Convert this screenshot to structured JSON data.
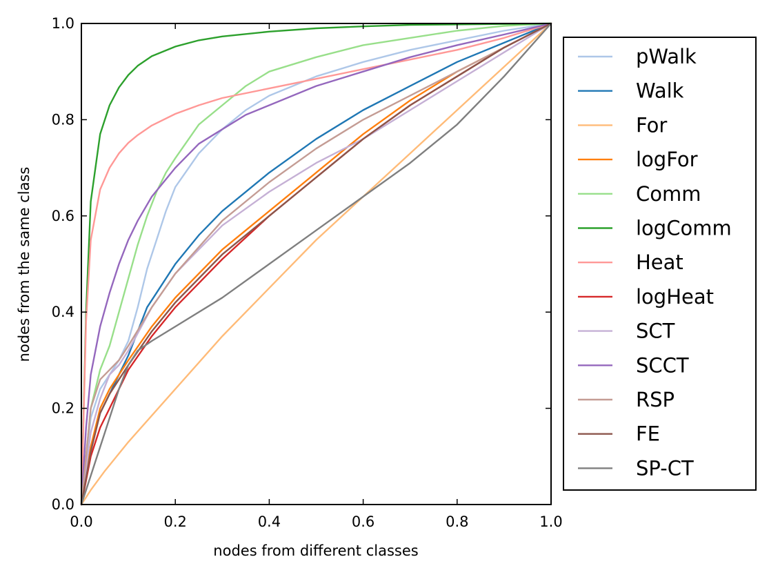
{
  "chart_data": {
    "type": "line",
    "title": "",
    "xlabel": "nodes from different classes",
    "ylabel": "nodes from the same class",
    "xlim": [
      0.0,
      1.0
    ],
    "ylim": [
      0.0,
      1.0
    ],
    "x_ticks": [
      "0.0",
      "0.2",
      "0.4",
      "0.6",
      "0.8",
      "1.0"
    ],
    "y_ticks": [
      "0.0",
      "0.2",
      "0.4",
      "0.6",
      "0.8",
      "1.0"
    ],
    "grid": false,
    "legend_position": "right, outside plot",
    "series": [
      {
        "name": "pWalk",
        "color": "#aec7e8",
        "x": [
          0,
          0.02,
          0.04,
          0.06,
          0.08,
          0.1,
          0.12,
          0.14,
          0.16,
          0.18,
          0.2,
          0.25,
          0.3,
          0.35,
          0.4,
          0.5,
          0.6,
          0.7,
          0.8,
          0.9,
          1.0
        ],
        "y": [
          0,
          0.18,
          0.24,
          0.27,
          0.3,
          0.34,
          0.41,
          0.49,
          0.55,
          0.61,
          0.66,
          0.73,
          0.78,
          0.82,
          0.85,
          0.89,
          0.92,
          0.945,
          0.965,
          0.985,
          1.0
        ]
      },
      {
        "name": "Walk",
        "color": "#1f77b4",
        "x": [
          0,
          0.02,
          0.04,
          0.06,
          0.08,
          0.1,
          0.12,
          0.14,
          0.16,
          0.2,
          0.25,
          0.3,
          0.35,
          0.4,
          0.5,
          0.6,
          0.7,
          0.8,
          0.9,
          1.0
        ],
        "y": [
          0,
          0.12,
          0.19,
          0.23,
          0.27,
          0.31,
          0.36,
          0.41,
          0.44,
          0.5,
          0.56,
          0.61,
          0.65,
          0.69,
          0.76,
          0.82,
          0.87,
          0.92,
          0.96,
          1.0
        ]
      },
      {
        "name": "For",
        "color": "#ffbb78",
        "x": [
          0,
          0.02,
          0.05,
          0.1,
          0.2,
          0.3,
          0.4,
          0.5,
          0.6,
          0.7,
          0.8,
          0.9,
          1.0
        ],
        "y": [
          0,
          0.03,
          0.07,
          0.13,
          0.24,
          0.35,
          0.45,
          0.55,
          0.64,
          0.73,
          0.82,
          0.91,
          1.0
        ]
      },
      {
        "name": "logFor",
        "color": "#ff7f0e",
        "x": [
          0,
          0.02,
          0.04,
          0.06,
          0.08,
          0.1,
          0.15,
          0.2,
          0.3,
          0.4,
          0.5,
          0.6,
          0.7,
          0.8,
          0.9,
          1.0
        ],
        "y": [
          0,
          0.12,
          0.2,
          0.24,
          0.27,
          0.3,
          0.37,
          0.43,
          0.53,
          0.61,
          0.69,
          0.77,
          0.84,
          0.9,
          0.95,
          1.0
        ]
      },
      {
        "name": "Comm",
        "color": "#98df8a",
        "x": [
          0,
          0.02,
          0.04,
          0.06,
          0.08,
          0.1,
          0.12,
          0.14,
          0.16,
          0.18,
          0.2,
          0.25,
          0.3,
          0.35,
          0.4,
          0.5,
          0.6,
          0.7,
          0.8,
          0.9,
          1.0
        ],
        "y": [
          0,
          0.2,
          0.28,
          0.33,
          0.4,
          0.47,
          0.54,
          0.6,
          0.65,
          0.69,
          0.72,
          0.79,
          0.83,
          0.87,
          0.9,
          0.93,
          0.955,
          0.97,
          0.985,
          0.995,
          1.0
        ]
      },
      {
        "name": "logComm",
        "color": "#2ca02c",
        "x": [
          0,
          0.01,
          0.02,
          0.04,
          0.06,
          0.08,
          0.1,
          0.12,
          0.15,
          0.2,
          0.25,
          0.3,
          0.4,
          0.5,
          0.6,
          0.7,
          0.8,
          0.9,
          1.0
        ],
        "y": [
          0,
          0.4,
          0.63,
          0.77,
          0.83,
          0.867,
          0.893,
          0.912,
          0.932,
          0.952,
          0.965,
          0.973,
          0.983,
          0.99,
          0.994,
          0.997,
          0.998,
          0.999,
          1.0
        ]
      },
      {
        "name": "Heat",
        "color": "#ff9896",
        "x": [
          0,
          0.01,
          0.02,
          0.04,
          0.06,
          0.08,
          0.1,
          0.12,
          0.15,
          0.2,
          0.25,
          0.3,
          0.4,
          0.5,
          0.6,
          0.7,
          0.8,
          0.9,
          1.0
        ],
        "y": [
          0,
          0.38,
          0.55,
          0.655,
          0.7,
          0.73,
          0.752,
          0.768,
          0.788,
          0.812,
          0.83,
          0.845,
          0.865,
          0.885,
          0.905,
          0.925,
          0.945,
          0.97,
          1.0
        ]
      },
      {
        "name": "logHeat",
        "color": "#d62728",
        "x": [
          0,
          0.02,
          0.04,
          0.06,
          0.1,
          0.15,
          0.2,
          0.3,
          0.4,
          0.5,
          0.6,
          0.7,
          0.8,
          0.9,
          1.0
        ],
        "y": [
          0,
          0.1,
          0.16,
          0.2,
          0.28,
          0.35,
          0.41,
          0.51,
          0.6,
          0.68,
          0.76,
          0.83,
          0.89,
          0.95,
          1.0
        ]
      },
      {
        "name": "SCT",
        "color": "#c5b0d5",
        "x": [
          0,
          0.02,
          0.04,
          0.06,
          0.08,
          0.1,
          0.15,
          0.2,
          0.3,
          0.4,
          0.5,
          0.6,
          0.7,
          0.8,
          0.9,
          1.0
        ],
        "y": [
          0,
          0.15,
          0.22,
          0.27,
          0.29,
          0.32,
          0.41,
          0.48,
          0.58,
          0.65,
          0.71,
          0.76,
          0.82,
          0.88,
          0.94,
          1.0
        ]
      },
      {
        "name": "SCCT",
        "color": "#9467bd",
        "x": [
          0,
          0.01,
          0.02,
          0.04,
          0.06,
          0.08,
          0.1,
          0.12,
          0.15,
          0.2,
          0.25,
          0.3,
          0.35,
          0.4,
          0.5,
          0.6,
          0.7,
          0.8,
          0.9,
          1.0
        ],
        "y": [
          0,
          0.16,
          0.27,
          0.37,
          0.44,
          0.5,
          0.55,
          0.59,
          0.64,
          0.7,
          0.75,
          0.78,
          0.81,
          0.83,
          0.87,
          0.9,
          0.93,
          0.955,
          0.977,
          1.0
        ]
      },
      {
        "name": "RSP",
        "color": "#c49c94",
        "x": [
          0,
          0.02,
          0.04,
          0.06,
          0.08,
          0.1,
          0.15,
          0.2,
          0.3,
          0.4,
          0.5,
          0.6,
          0.7,
          0.8,
          0.9,
          1.0
        ],
        "y": [
          0,
          0.2,
          0.26,
          0.28,
          0.3,
          0.33,
          0.41,
          0.48,
          0.59,
          0.67,
          0.74,
          0.8,
          0.85,
          0.9,
          0.95,
          1.0
        ]
      },
      {
        "name": "FE",
        "color": "#8c564b",
        "x": [
          0,
          0.02,
          0.04,
          0.06,
          0.08,
          0.1,
          0.15,
          0.2,
          0.3,
          0.4,
          0.5,
          0.6,
          0.7,
          0.8,
          0.9,
          1.0
        ],
        "y": [
          0,
          0.11,
          0.19,
          0.23,
          0.26,
          0.29,
          0.36,
          0.42,
          0.52,
          0.6,
          0.68,
          0.76,
          0.83,
          0.89,
          0.95,
          1.0
        ]
      },
      {
        "name": "SP-CT",
        "color": "#7f7f7f",
        "x": [
          0,
          0.02,
          0.05,
          0.08,
          0.1,
          0.12,
          0.15,
          0.2,
          0.3,
          0.4,
          0.5,
          0.6,
          0.7,
          0.8,
          0.9,
          1.0
        ],
        "y": [
          0,
          0.06,
          0.15,
          0.24,
          0.29,
          0.32,
          0.34,
          0.37,
          0.43,
          0.5,
          0.57,
          0.64,
          0.71,
          0.79,
          0.89,
          1.0
        ]
      }
    ]
  }
}
